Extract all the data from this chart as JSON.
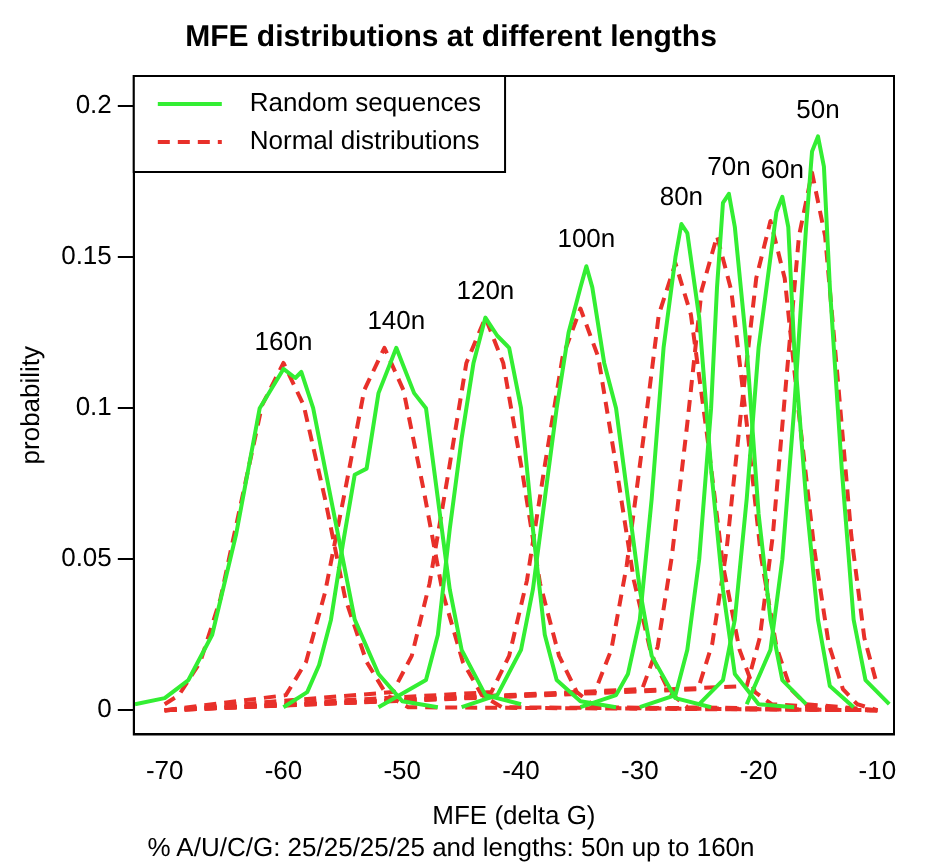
{
  "chart_data": {
    "type": "line",
    "title": "MFE distributions at different lengths",
    "xlabel": "MFE (delta G)",
    "ylabel": "probability",
    "xlim": [
      -72.6,
      -8.6
    ],
    "xticks": [
      -70,
      -60,
      -50,
      -40,
      -30,
      -20,
      -10
    ],
    "ylim": [
      -0.008,
      0.21
    ],
    "yticks": [
      0,
      0.05,
      0.1,
      0.15,
      0.2
    ],
    "grid": false,
    "legend": "top left",
    "marker": "none",
    "series": [
      {
        "name": "Random sequences",
        "color": "#33ee33",
        "line_style": "solid",
        "x": [
          -72.5,
          -70,
          -68,
          -66,
          -64,
          -62,
          -60,
          -59,
          -58.5,
          -57.5,
          -56,
          -55,
          -54,
          -52,
          -50,
          -47
        ],
        "values": [
          0.002,
          0.004,
          0.01,
          0.025,
          0.058,
          0.1,
          0.113,
          0.11,
          0.112,
          0.1,
          0.07,
          0.05,
          0.03,
          0.012,
          0.003,
          0.001
        ]
      },
      {
        "color": "#33ee33",
        "line_style": "solid",
        "x": [
          -60,
          -58,
          -57,
          -56,
          -55,
          -54,
          -53,
          -52,
          -51,
          -50.5,
          -50,
          -49,
          -48,
          -47,
          -46,
          -45,
          -43,
          -40
        ],
        "values": [
          0.001,
          0.006,
          0.015,
          0.03,
          0.055,
          0.078,
          0.08,
          0.105,
          0.115,
          0.12,
          0.115,
          0.105,
          0.1,
          0.07,
          0.04,
          0.02,
          0.005,
          0.002
        ]
      },
      {
        "color": "#33ee33",
        "line_style": "solid",
        "x": [
          -52,
          -48,
          -47,
          -46,
          -45,
          -44,
          -43,
          -42,
          -41,
          -40,
          -39,
          -38,
          -37,
          -35,
          -32
        ],
        "values": [
          0.001,
          0.01,
          0.025,
          0.06,
          0.09,
          0.115,
          0.13,
          0.124,
          0.12,
          0.1,
          0.06,
          0.025,
          0.01,
          0.003,
          0.001
        ]
      },
      {
        "color": "#33ee33",
        "line_style": "solid",
        "x": [
          -45,
          -42,
          -40,
          -39,
          -38,
          -37,
          -36,
          -35,
          -34.5,
          -34,
          -33,
          -32,
          -31,
          -30,
          -29,
          -27,
          -24
        ],
        "values": [
          0.001,
          0.005,
          0.02,
          0.04,
          0.07,
          0.1,
          0.125,
          0.14,
          0.147,
          0.14,
          0.115,
          0.1,
          0.07,
          0.04,
          0.018,
          0.004,
          0.001
        ]
      },
      {
        "color": "#33ee33",
        "line_style": "solid",
        "x": [
          -35,
          -32,
          -31,
          -30,
          -29,
          -28,
          -27,
          -26.5,
          -26,
          -25,
          -24,
          -23,
          -22,
          -20,
          -17
        ],
        "values": [
          0.001,
          0.005,
          0.012,
          0.03,
          0.07,
          0.12,
          0.15,
          0.161,
          0.158,
          0.13,
          0.08,
          0.04,
          0.012,
          0.002,
          0.001
        ]
      },
      {
        "color": "#33ee33",
        "line_style": "solid",
        "x": [
          -30,
          -27,
          -26,
          -25,
          -24,
          -23.5,
          -23,
          -22.5,
          -22,
          -21,
          -20,
          -19,
          -18,
          -16
        ],
        "values": [
          0.001,
          0.005,
          0.02,
          0.05,
          0.1,
          0.14,
          0.168,
          0.171,
          0.16,
          0.12,
          0.065,
          0.03,
          0.01,
          0.002
        ]
      },
      {
        "color": "#33ee33",
        "line_style": "solid",
        "x": [
          -25,
          -23,
          -22,
          -21,
          -20,
          -19,
          -18.5,
          -18,
          -17.5,
          -17,
          -16,
          -15,
          -14,
          -12
        ],
        "values": [
          0.002,
          0.01,
          0.03,
          0.07,
          0.12,
          0.15,
          0.165,
          0.17,
          0.16,
          0.12,
          0.07,
          0.03,
          0.008,
          0.001
        ]
      },
      {
        "color": "#33ee33",
        "line_style": "solid",
        "x": [
          -21,
          -19,
          -18,
          -17,
          -16,
          -15.5,
          -15,
          -14.5,
          -14,
          -13,
          -12,
          -11,
          -9
        ],
        "values": [
          0.002,
          0.02,
          0.05,
          0.1,
          0.16,
          0.185,
          0.19,
          0.18,
          0.14,
          0.08,
          0.03,
          0.01,
          0.002
        ]
      },
      {
        "name": "Normal distributions",
        "color": "#e8302a",
        "line_style": "dashed",
        "x": [
          -70,
          -68.8,
          -67,
          -65.3,
          -63.5,
          -61.8,
          -60,
          -58.3,
          -56.5,
          -54.8,
          -53,
          -51.3,
          -49.5,
          -10
        ],
        "values": [
          0.002,
          0.005,
          0.016,
          0.037,
          0.07,
          0.101,
          0.115,
          0.101,
          0.07,
          0.037,
          0.016,
          0.005,
          0.001,
          0
        ]
      },
      {
        "color": "#e8302a",
        "line_style": "dashed",
        "x": [
          -70,
          -59.8,
          -58.1,
          -56.5,
          -54.8,
          -53.2,
          -51.5,
          -49.9,
          -48.2,
          -46.6,
          -44.9,
          -43.3,
          -41.6,
          -10
        ],
        "values": [
          0,
          0.005,
          0.016,
          0.039,
          0.073,
          0.106,
          0.12,
          0.106,
          0.073,
          0.039,
          0.016,
          0.005,
          0.001,
          0
        ]
      },
      {
        "color": "#e8302a",
        "line_style": "dashed",
        "x": [
          -70,
          -50.8,
          -49.2,
          -47.7,
          -46.1,
          -44.6,
          -43,
          -41.5,
          -39.9,
          -38.4,
          -36.8,
          -35.3,
          -33.7,
          -10
        ],
        "values": [
          0,
          0.006,
          0.018,
          0.042,
          0.079,
          0.115,
          0.13,
          0.115,
          0.079,
          0.042,
          0.018,
          0.006,
          0.001,
          0
        ]
      },
      {
        "color": "#e8302a",
        "line_style": "dashed",
        "x": [
          -70,
          -42.5,
          -41,
          -39.5,
          -38,
          -36.5,
          -35,
          -33.5,
          -32,
          -30.5,
          -29,
          -27.5,
          -26,
          -10
        ],
        "values": [
          0,
          0.006,
          0.018,
          0.043,
          0.081,
          0.117,
          0.133,
          0.117,
          0.081,
          0.043,
          0.018,
          0.006,
          0.001,
          0
        ]
      },
      {
        "color": "#e8302a",
        "line_style": "dashed",
        "x": [
          -70,
          -33.8,
          -32.4,
          -31.1,
          -29.7,
          -28.4,
          -27,
          -25.7,
          -24.3,
          -23,
          -21.6,
          -20.3,
          -18.9,
          -10
        ],
        "values": [
          0,
          0.006,
          0.02,
          0.048,
          0.09,
          0.131,
          0.148,
          0.131,
          0.09,
          0.048,
          0.02,
          0.006,
          0.002,
          0
        ]
      },
      {
        "color": "#e8302a",
        "line_style": "dashed",
        "x": [
          -70,
          -29.8,
          -28.5,
          -27.3,
          -26,
          -24.8,
          -23.5,
          -22.3,
          -21,
          -19.8,
          -18.5,
          -17.3,
          -16,
          -10
        ],
        "values": [
          0,
          0.007,
          0.021,
          0.051,
          0.095,
          0.139,
          0.157,
          0.139,
          0.095,
          0.051,
          0.021,
          0.007,
          0.002,
          0
        ]
      },
      {
        "color": "#e8302a",
        "line_style": "dashed",
        "x": [
          -70,
          -25.1,
          -23.9,
          -22.7,
          -21.5,
          -20.2,
          -19,
          -17.8,
          -16.6,
          -15.3,
          -14.1,
          -12.9,
          -11.7,
          -10
        ],
        "values": [
          0,
          0.007,
          0.022,
          0.053,
          0.098,
          0.143,
          0.162,
          0.143,
          0.098,
          0.053,
          0.022,
          0.007,
          0.002,
          0
        ]
      },
      {
        "color": "#e8302a",
        "line_style": "dashed",
        "x": [
          -70,
          -21,
          -19.9,
          -18.8,
          -17.7,
          -16.6,
          -15.5,
          -14.4,
          -13.3,
          -12.2,
          -11.1,
          -10
        ],
        "values": [
          0,
          0.008,
          0.024,
          0.058,
          0.108,
          0.157,
          0.178,
          0.157,
          0.108,
          0.058,
          0.024,
          0.008
        ]
      }
    ],
    "annotations": [
      {
        "text": "160n",
        "x": -60,
        "y": 0.113
      },
      {
        "text": "140n",
        "x": -50.5,
        "y": 0.12
      },
      {
        "text": "120n",
        "x": -43,
        "y": 0.13
      },
      {
        "text": "100n",
        "x": -34.5,
        "y": 0.147
      },
      {
        "text": "80n",
        "x": -26.5,
        "y": 0.161
      },
      {
        "text": "70n",
        "x": -22.5,
        "y": 0.171
      },
      {
        "text": "60n",
        "x": -18,
        "y": 0.17
      },
      {
        "text": "50n",
        "x": -15,
        "y": 0.19
      },
      "% A/U/C/G: 25/25/25/25 and lengths: 50n up to 160n"
    ]
  }
}
